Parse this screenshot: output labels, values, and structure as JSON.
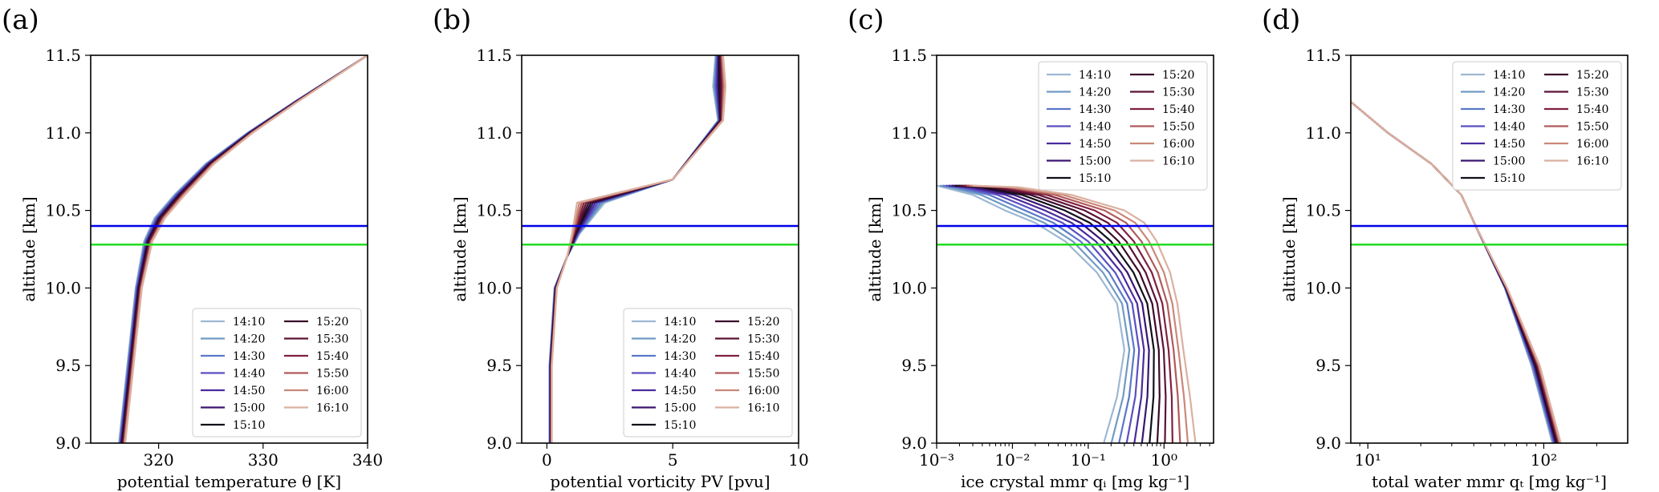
{
  "figure": {
    "time_labels": [
      "14:10",
      "14:20",
      "14:30",
      "14:40",
      "14:50",
      "15:00",
      "15:10",
      "15:20",
      "15:30",
      "15:40",
      "15:50",
      "16:00",
      "16:10"
    ],
    "time_colors": [
      "#9db8d2",
      "#6f9bc2",
      "#5a78c9",
      "#5a4fc0",
      "#4a2b9e",
      "#3a1470",
      "#10101a",
      "#3a0a2a",
      "#5c1236",
      "#80203e",
      "#b05a5a",
      "#c98878",
      "#dbb0a0"
    ],
    "ref_lines": [
      {
        "y": 10.4,
        "color": "#0000ee"
      },
      {
        "y": 10.28,
        "color": "#22dd22"
      }
    ]
  },
  "chart_data": [
    {
      "type": "line",
      "panel_label": "(a)",
      "xlabel": "potential temperature θ [K]",
      "ylabel": "altitude [km]",
      "xlim": [
        313.5,
        340
      ],
      "ylim": [
        9.0,
        11.5
      ],
      "xscale": "linear",
      "xticks": [
        320,
        330,
        340
      ],
      "yticks": [
        9.0,
        9.5,
        10.0,
        10.5,
        11.0,
        11.5
      ],
      "legend": "lower right",
      "altitude": [
        9.0,
        9.5,
        10.0,
        10.3,
        10.45,
        10.6,
        10.8,
        11.0,
        11.2,
        11.5
      ],
      "profile_first": [
        316.2,
        317.0,
        317.8,
        318.6,
        319.6,
        321.5,
        324.5,
        328.5,
        333.0,
        340.0
      ],
      "profile_last": [
        316.8,
        317.6,
        318.4,
        319.4,
        320.6,
        322.5,
        325.3,
        329.0,
        333.3,
        340.0
      ]
    },
    {
      "type": "line",
      "panel_label": "(b)",
      "xlabel": "potential vorticity PV [pvu]",
      "ylabel": "altitude [km]",
      "xlim": [
        -1.0,
        10.0
      ],
      "ylim": [
        9.0,
        11.5
      ],
      "xscale": "linear",
      "xticks": [
        0,
        5,
        10
      ],
      "yticks": [
        9.0,
        9.5,
        10.0,
        10.5,
        11.0,
        11.5
      ],
      "legend": "lower right",
      "altitude": [
        9.0,
        9.5,
        10.0,
        10.2,
        10.35,
        10.55,
        10.7,
        11.08,
        11.3,
        11.5
      ],
      "profile_first": [
        0.1,
        0.1,
        0.3,
        0.8,
        1.3,
        2.3,
        5.0,
        6.8,
        6.6,
        6.7
      ],
      "profile_last": [
        0.2,
        0.2,
        0.4,
        0.8,
        1.0,
        1.2,
        5.0,
        7.0,
        7.1,
        7.0
      ]
    },
    {
      "type": "line",
      "panel_label": "(c)",
      "xlabel": "ice crystal mmr qᵢ [mg kg⁻¹]",
      "ylabel": "altitude [km]",
      "xlim": [
        0.001,
        4.5
      ],
      "ylim": [
        9.0,
        11.5
      ],
      "xscale": "log",
      "xticks": [
        0.001,
        0.01,
        0.1,
        1
      ],
      "xtick_labels": [
        "10⁻³",
        "10⁻²",
        "10⁻¹",
        "10⁰"
      ],
      "yticks": [
        9.0,
        9.5,
        10.0,
        10.5,
        11.0,
        11.5
      ],
      "legend": "upper right",
      "altitude": [
        9.0,
        9.3,
        9.6,
        9.9,
        10.1,
        10.3,
        10.42,
        10.5,
        10.6,
        10.65,
        10.66
      ],
      "profile_first": [
        0.16,
        0.24,
        0.3,
        0.24,
        0.13,
        0.05,
        0.02,
        0.008,
        0.003,
        0.0012,
        0.001
      ],
      "profile_last": [
        2.6,
        2.2,
        1.8,
        1.5,
        1.2,
        0.8,
        0.55,
        0.3,
        0.06,
        0.012,
        0.003
      ]
    },
    {
      "type": "line",
      "panel_label": "(d)",
      "xlabel": "total water mmr qₜ [mg kg⁻¹]",
      "ylabel": "altitude [km]",
      "xlim": [
        8.0,
        300.0
      ],
      "ylim": [
        9.0,
        11.5
      ],
      "xscale": "log",
      "xticks": [
        10,
        100
      ],
      "xtick_labels": [
        "10¹",
        "10²"
      ],
      "yticks": [
        9.0,
        9.5,
        10.0,
        10.5,
        11.0,
        11.5
      ],
      "legend": "upper right",
      "altitude": [
        9.0,
        9.5,
        10.0,
        10.4,
        10.6,
        10.8,
        11.0,
        11.2
      ],
      "profile_first": [
        112,
        85,
        60,
        41,
        34,
        23,
        13,
        8
      ],
      "profile_last": [
        125,
        95,
        62,
        41,
        34,
        23,
        13,
        8
      ]
    }
  ]
}
